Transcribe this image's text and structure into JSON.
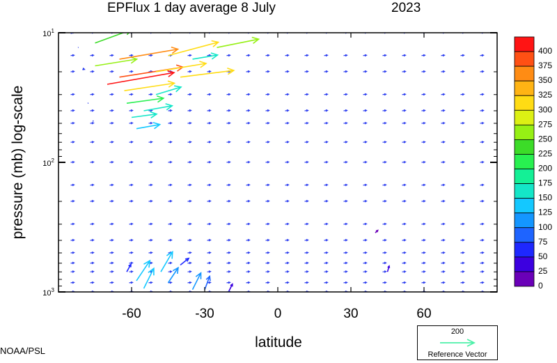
{
  "title": {
    "main": "EPFlux  1 day average  8 July",
    "year": "2023"
  },
  "credit": "NOAA/PSL",
  "reference_vector": {
    "magnitude_label": "200",
    "label": "Reference Vector",
    "color": "#4cf0a8"
  },
  "colors": {
    "vector_default": "#2b3df0",
    "frame": "#000000"
  },
  "chart_data": {
    "type": "vector-field",
    "title": "EPFlux  1 day average  8 July      2023",
    "xlabel": "latitude",
    "ylabel": "pressure (mb)  log-scale",
    "xlim": [
      -90,
      90
    ],
    "ylim": [
      1000,
      10
    ],
    "y_scale": "log",
    "x_ticks": [
      -60,
      -30,
      0,
      30,
      60
    ],
    "x_tick_labels": [
      "-60",
      "-30",
      "0",
      "30",
      "60"
    ],
    "y_ticks": [
      10,
      100,
      1000
    ],
    "y_tick_labels": [
      {
        "base": "10",
        "exp": "1"
      },
      {
        "base": "10",
        "exp": "2"
      },
      {
        "base": "10",
        "exp": "3"
      }
    ],
    "grid": false,
    "colorbar": {
      "levels": [
        0,
        25,
        50,
        75,
        100,
        125,
        150,
        175,
        200,
        225,
        250,
        275,
        300,
        325,
        350,
        375,
        400
      ],
      "labels": [
        "400",
        "375",
        "350",
        "325",
        "300",
        "275",
        "250",
        "225",
        "200",
        "175",
        "150",
        "125",
        "100",
        "75",
        "50",
        "25",
        "0"
      ],
      "colors": [
        "#6a00b8",
        "#3c00e0",
        "#1e28ff",
        "#1e64ff",
        "#1496ff",
        "#14c8ff",
        "#14e6c8",
        "#14f096",
        "#28f050",
        "#3cdc28",
        "#96f014",
        "#dcf014",
        "#ffdc14",
        "#ffb414",
        "#ff8c14",
        "#ff5014",
        "#ff1414"
      ]
    },
    "vectors": [
      {
        "lat": -85,
        "p": 10,
        "u": 10,
        "v": 2
      },
      {
        "lat": -82,
        "p": 13,
        "u": 3,
        "v": 1
      },
      {
        "lat": -80,
        "p": 19,
        "u": 9,
        "v": -3
      },
      {
        "lat": -78,
        "p": 35,
        "u": 4,
        "v": 1
      },
      {
        "lat": -76,
        "p": 48,
        "u": 6,
        "v": 0
      },
      {
        "lat": -75,
        "p": 18,
        "u": 250,
        "v": 40
      },
      {
        "lat": -75,
        "p": 12,
        "u": 220,
        "v": 80
      },
      {
        "lat": -70,
        "p": 25,
        "u": 400,
        "v": 70
      },
      {
        "lat": -65,
        "p": 16,
        "u": 350,
        "v": 60
      },
      {
        "lat": -65,
        "p": 22,
        "u": 380,
        "v": 60
      },
      {
        "lat": -63,
        "p": 28,
        "u": 300,
        "v": 45
      },
      {
        "lat": -62,
        "p": 35,
        "u": 220,
        "v": 30
      },
      {
        "lat": -60,
        "p": 45,
        "u": 150,
        "v": 20
      },
      {
        "lat": -58,
        "p": 55,
        "u": 140,
        "v": 25
      },
      {
        "lat": -55,
        "p": 40,
        "u": 170,
        "v": 30
      },
      {
        "lat": -50,
        "p": 30,
        "u": 150,
        "v": 45
      },
      {
        "lat": -50,
        "p": 20,
        "u": 300,
        "v": 50
      },
      {
        "lat": -45,
        "p": 15,
        "u": 300,
        "v": 80
      },
      {
        "lat": -40,
        "p": 22,
        "u": 320,
        "v": 40
      },
      {
        "lat": -35,
        "p": 16,
        "u": 150,
        "v": 25
      },
      {
        "lat": -25,
        "p": 13,
        "u": 250,
        "v": 50
      },
      {
        "lat": -62,
        "p": 700,
        "u": 25,
        "v": 45
      },
      {
        "lat": -58,
        "p": 820,
        "u": 80,
        "v": 120
      },
      {
        "lat": -55,
        "p": 940,
        "u": 60,
        "v": 120
      },
      {
        "lat": -48,
        "p": 700,
        "u": 70,
        "v": 120
      },
      {
        "lat": -45,
        "p": 850,
        "u": 60,
        "v": 90
      },
      {
        "lat": -40,
        "p": 620,
        "u": 50,
        "v": 40
      },
      {
        "lat": -35,
        "p": 960,
        "u": 50,
        "v": 100
      },
      {
        "lat": -30,
        "p": 960,
        "u": 30,
        "v": 80
      },
      {
        "lat": -20,
        "p": 980,
        "u": 20,
        "v": 40
      },
      {
        "lat": 40,
        "p": 350,
        "u": 15,
        "v": 15
      },
      {
        "lat": 45,
        "p": 700,
        "u": 10,
        "v": 35
      }
    ]
  }
}
